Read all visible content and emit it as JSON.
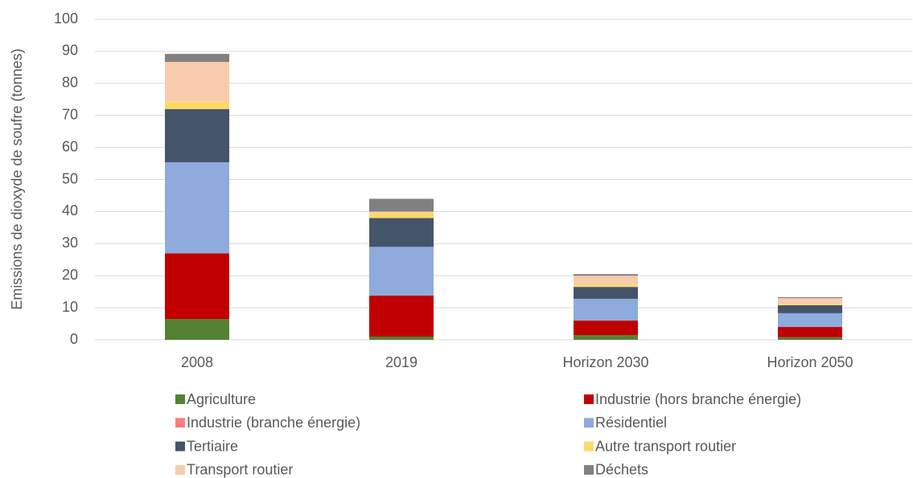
{
  "chart_data": {
    "type": "stacked_bar",
    "y_label": "Emissions de dioxyde de soufre (tonnes)",
    "categories": [
      "2008",
      "2019",
      "Horizon 2030",
      "Horizon 2050"
    ],
    "series": [
      {
        "name": "Agriculture",
        "color": "#548235",
        "values": [
          6.5,
          1,
          1.5,
          0.8
        ]
      },
      {
        "name": "Industrie (hors branche énergie)",
        "color": "#c00000",
        "values": [
          20.5,
          12.8,
          4.5,
          3.2
        ]
      },
      {
        "name": "Industrie (branche énergie)",
        "color": "#ff7c80",
        "values": [
          0,
          0,
          0,
          0
        ]
      },
      {
        "name": "Résidentiel",
        "color": "#8faadc",
        "values": [
          28.4,
          15.2,
          6.8,
          4.3
        ]
      },
      {
        "name": "Tertiaire",
        "color": "#44546a",
        "values": [
          16.6,
          9,
          3.7,
          2.5
        ]
      },
      {
        "name": "Autre transport routier",
        "color": "#ffd966",
        "values": [
          2.4,
          1.6,
          0.7,
          0.4
        ]
      },
      {
        "name": "Transport routier",
        "color": "#f8cbad",
        "values": [
          12.3,
          0.4,
          2.8,
          1.8
        ]
      },
      {
        "name": "Déchets",
        "color": "#808080",
        "values": [
          2.5,
          4,
          0.5,
          0.3
        ]
      }
    ],
    "ylim": [
      0,
      100
    ],
    "yticks": [
      0,
      10,
      20,
      30,
      40,
      50,
      60,
      70,
      80,
      90,
      100
    ],
    "grid": true
  }
}
